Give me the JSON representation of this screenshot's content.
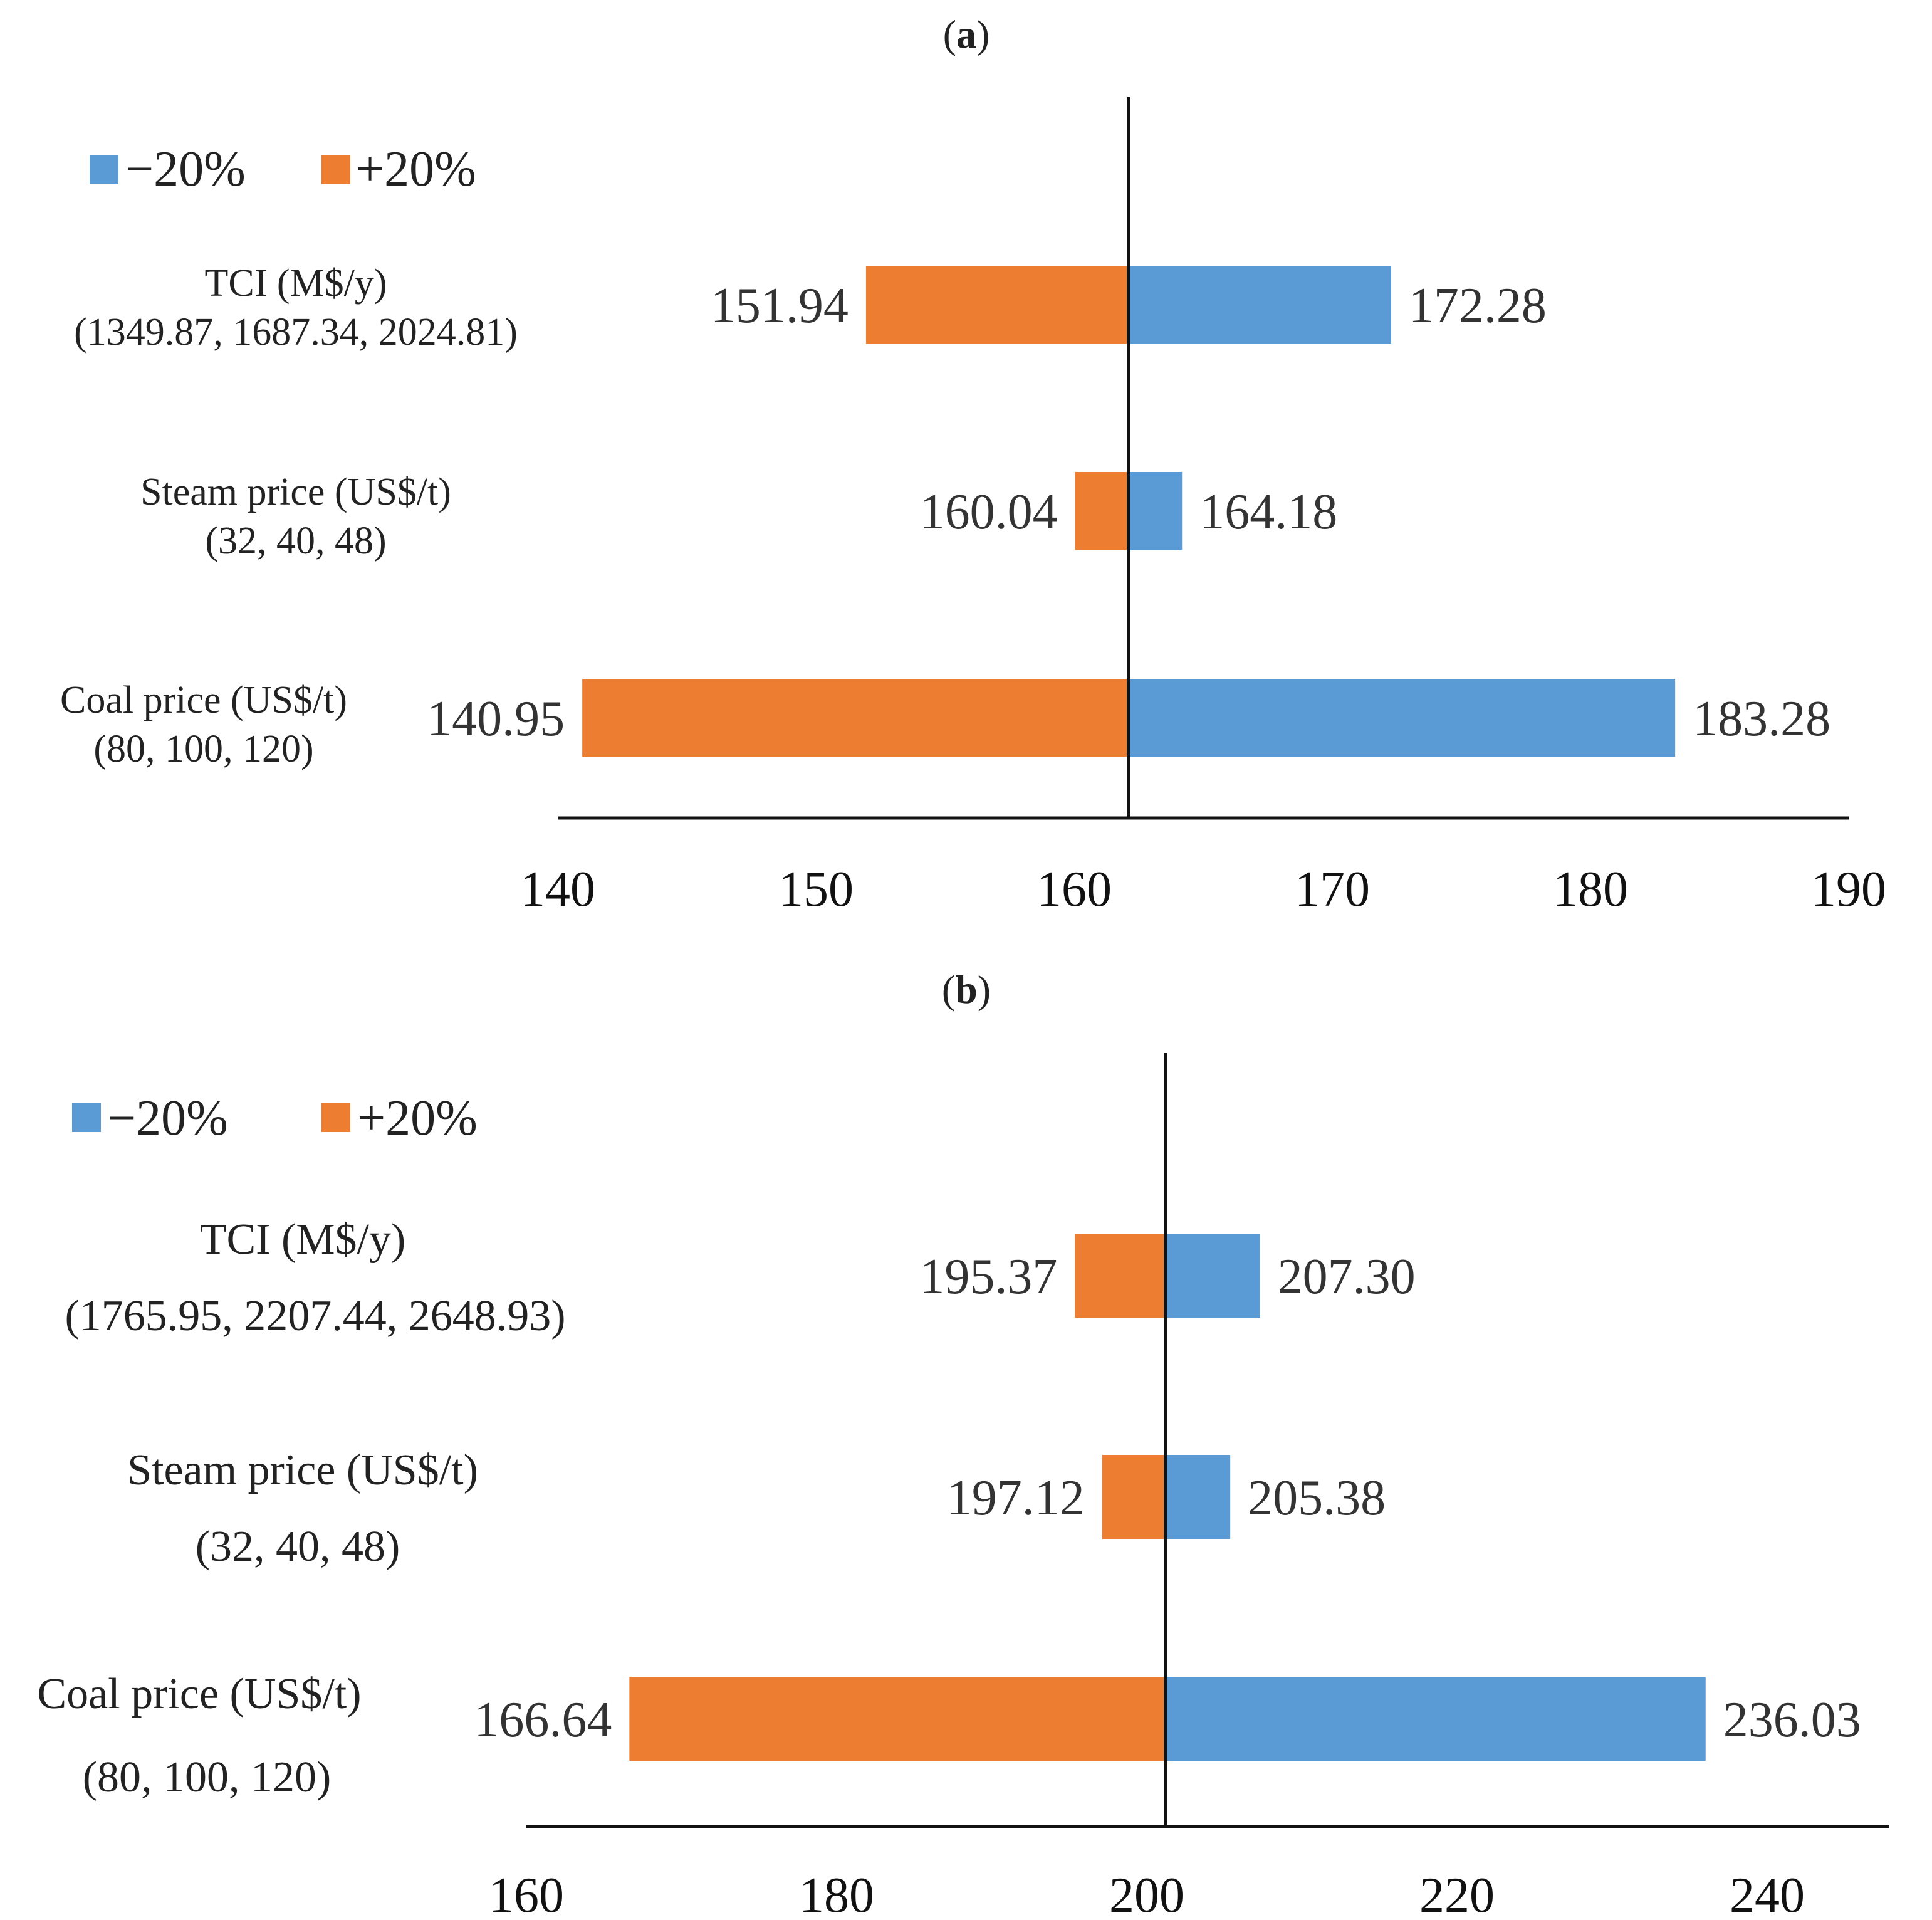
{
  "colors": {
    "minus": "#5b9bd5",
    "plus": "#ed7d31",
    "axis": "#111111"
  },
  "chart_data": [
    {
      "type": "bar",
      "orientation": "horizontal",
      "title": "(a)",
      "legend": [
        "−20%",
        "+20%"
      ],
      "baseline": 162.1,
      "xlim": [
        140,
        190
      ],
      "xticks": [
        "140",
        "150",
        "160",
        "170",
        "180",
        "190"
      ],
      "xtick_values": [
        140,
        150,
        160,
        170,
        180,
        190
      ],
      "categories": [
        {
          "line1": "TCI (M$/y)",
          "line2": "(1349.87, 1687.34, 2024.81)"
        },
        {
          "line1": "Steam price (US$/t)",
          "line2": "(32, 40, 48)"
        },
        {
          "line1": "Coal price (US$/t)",
          "line2": "(80, 100, 120)"
        }
      ],
      "series": [
        {
          "name": "−20%",
          "color": "#5b9bd5",
          "values": [
            172.28,
            164.18,
            183.28
          ],
          "labels": [
            "172.28",
            "164.18",
            "183.28"
          ]
        },
        {
          "name": "+20%",
          "color": "#ed7d31",
          "values": [
            151.94,
            160.04,
            140.95
          ],
          "labels": [
            "151.94",
            "160.04",
            "140.95"
          ]
        }
      ]
    },
    {
      "type": "bar",
      "orientation": "horizontal",
      "title": "(b)",
      "legend": [
        "−20%",
        "+20%"
      ],
      "baseline": 201.2,
      "xlim": [
        160,
        250
      ],
      "xticks": [
        "160",
        "180",
        "200",
        "220",
        "240"
      ],
      "xtick_values": [
        160,
        180,
        200,
        220,
        240
      ],
      "categories": [
        {
          "line1": "TCI (M$/y)",
          "line2": "(1765.95, 2207.44, 2648.93)"
        },
        {
          "line1": "Steam price (US$/t)",
          "line2": "(32, 40, 48)"
        },
        {
          "line1": "Coal price (US$/t)",
          "line2": "(80, 100, 120)"
        }
      ],
      "series": [
        {
          "name": "−20%",
          "color": "#5b9bd5",
          "values": [
            207.3,
            205.38,
            236.03
          ],
          "labels": [
            "207.30",
            "205.38",
            "236.03"
          ]
        },
        {
          "name": "+20%",
          "color": "#ed7d31",
          "values": [
            195.37,
            197.12,
            166.64
          ],
          "labels": [
            "195.37",
            "197.12",
            "166.64"
          ]
        }
      ]
    }
  ]
}
